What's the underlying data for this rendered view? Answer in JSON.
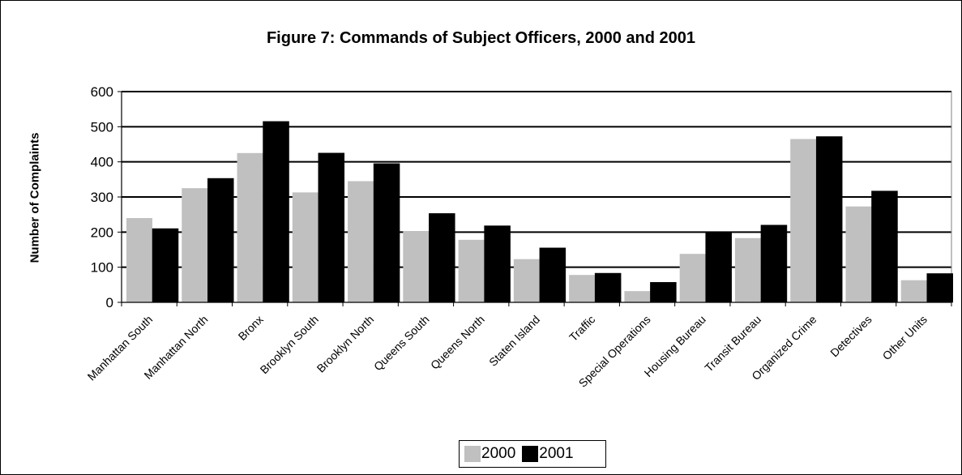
{
  "chart_data": {
    "type": "bar",
    "title": "Figure 7: Commands of Subject Officers,  2000 and 2001",
    "xlabel": "",
    "ylabel": "Number of Complaints",
    "ylim": [
      0,
      600
    ],
    "yticks": [
      0,
      100,
      200,
      300,
      400,
      500,
      600
    ],
    "grid": true,
    "legend_position": "bottom",
    "categories": [
      "Manhattan South",
      "Manhattan North",
      "Bronx",
      "Brooklyn South",
      "Brooklyn North",
      "Queens South",
      "Queens North",
      "Staten Island",
      "Traffic",
      "Special Operations",
      "Housing Bureau",
      "Transit Bureau",
      "Organized Crime",
      "Detectives",
      "Other Units"
    ],
    "series": [
      {
        "name": "2000",
        "color": "#c0c0c0",
        "values": [
          240,
          325,
          425,
          313,
          345,
          203,
          178,
          123,
          78,
          32,
          138,
          183,
          465,
          273,
          63
        ]
      },
      {
        "name": "2001",
        "color": "#000000",
        "values": [
          210,
          353,
          515,
          425,
          395,
          253,
          218,
          155,
          83,
          57,
          200,
          220,
          472,
          317,
          82
        ]
      }
    ]
  }
}
